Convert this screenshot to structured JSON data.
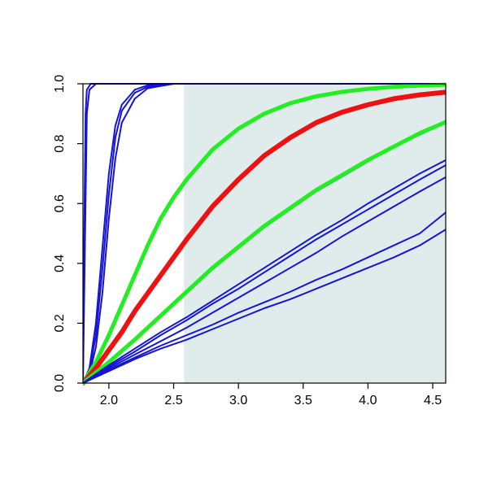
{
  "chart_data": {
    "type": "line",
    "title": "",
    "xlabel": "",
    "ylabel": "",
    "xlim": [
      1.8,
      4.6
    ],
    "ylim": [
      0.0,
      1.0
    ],
    "x_ticks": [
      2.0,
      2.5,
      3.0,
      3.5,
      4.0,
      4.5
    ],
    "x_tick_labels": [
      "2.0",
      "2.5",
      "3.0",
      "3.5",
      "4.0",
      "4.5"
    ],
    "y_ticks": [
      0.0,
      0.2,
      0.4,
      0.6,
      0.8,
      1.0
    ],
    "y_tick_labels": [
      "0.0",
      "0.2",
      "0.4",
      "0.6",
      "0.8",
      "1.0"
    ],
    "grid": false,
    "legend": "none",
    "shaded_region": {
      "x_start": 2.58,
      "x_end": 4.6,
      "color": "#e0ecec"
    },
    "colors": {
      "blue": "#1414d2",
      "green": "#22ee22",
      "red": "#ee1111"
    },
    "series": [
      {
        "color": "blue",
        "width": 2,
        "points": [
          [
            1.8,
            0
          ],
          [
            1.81,
            0.5
          ],
          [
            1.82,
            0.9
          ],
          [
            1.83,
            0.98
          ],
          [
            1.86,
            1.0
          ],
          [
            4.6,
            1.0
          ]
        ]
      },
      {
        "color": "blue",
        "width": 2,
        "points": [
          [
            1.8,
            0
          ],
          [
            1.82,
            0.6
          ],
          [
            1.83,
            0.9
          ],
          [
            1.85,
            0.98
          ],
          [
            1.9,
            1.0
          ],
          [
            4.6,
            1.0
          ]
        ]
      },
      {
        "color": "blue",
        "width": 2,
        "points": [
          [
            1.8,
            0
          ],
          [
            1.85,
            0.05
          ],
          [
            1.9,
            0.2
          ],
          [
            1.95,
            0.45
          ],
          [
            2.0,
            0.7
          ],
          [
            2.05,
            0.86
          ],
          [
            2.1,
            0.93
          ],
          [
            2.2,
            0.98
          ],
          [
            2.3,
            0.995
          ],
          [
            2.5,
            1.0
          ],
          [
            4.6,
            1.0
          ]
        ]
      },
      {
        "color": "blue",
        "width": 2,
        "points": [
          [
            1.8,
            0
          ],
          [
            1.85,
            0.04
          ],
          [
            1.9,
            0.16
          ],
          [
            1.95,
            0.38
          ],
          [
            2.0,
            0.63
          ],
          [
            2.05,
            0.82
          ],
          [
            2.1,
            0.91
          ],
          [
            2.2,
            0.97
          ],
          [
            2.3,
            0.99
          ],
          [
            2.5,
            1.0
          ],
          [
            4.6,
            1.0
          ]
        ]
      },
      {
        "color": "blue",
        "width": 2,
        "points": [
          [
            1.8,
            0
          ],
          [
            1.85,
            0.03
          ],
          [
            1.9,
            0.12
          ],
          [
            1.95,
            0.3
          ],
          [
            2.0,
            0.55
          ],
          [
            2.05,
            0.75
          ],
          [
            2.1,
            0.87
          ],
          [
            2.2,
            0.95
          ],
          [
            2.3,
            0.985
          ],
          [
            2.5,
            1.0
          ],
          [
            4.6,
            1.0
          ]
        ]
      },
      {
        "color": "green",
        "width": 5,
        "points": [
          [
            1.8,
            0
          ],
          [
            1.9,
            0.07
          ],
          [
            2.0,
            0.16
          ],
          [
            2.1,
            0.26
          ],
          [
            2.2,
            0.36
          ],
          [
            2.3,
            0.46
          ],
          [
            2.4,
            0.55
          ],
          [
            2.5,
            0.62
          ],
          [
            2.6,
            0.68
          ],
          [
            2.8,
            0.78
          ],
          [
            3.0,
            0.85
          ],
          [
            3.2,
            0.9
          ],
          [
            3.4,
            0.935
          ],
          [
            3.6,
            0.958
          ],
          [
            3.8,
            0.973
          ],
          [
            4.0,
            0.983
          ],
          [
            4.2,
            0.99
          ],
          [
            4.4,
            0.994
          ],
          [
            4.6,
            0.997
          ]
        ]
      },
      {
        "color": "red",
        "width": 6,
        "points": [
          [
            1.8,
            0
          ],
          [
            1.9,
            0.05
          ],
          [
            2.0,
            0.11
          ],
          [
            2.1,
            0.17
          ],
          [
            2.2,
            0.24
          ],
          [
            2.3,
            0.3
          ],
          [
            2.4,
            0.36
          ],
          [
            2.5,
            0.42
          ],
          [
            2.6,
            0.48
          ],
          [
            2.8,
            0.59
          ],
          [
            3.0,
            0.68
          ],
          [
            3.2,
            0.76
          ],
          [
            3.4,
            0.82
          ],
          [
            3.6,
            0.87
          ],
          [
            3.8,
            0.905
          ],
          [
            4.0,
            0.93
          ],
          [
            4.2,
            0.95
          ],
          [
            4.4,
            0.963
          ],
          [
            4.6,
            0.972
          ]
        ]
      },
      {
        "color": "blue",
        "width": 2,
        "points": [
          [
            1.8,
            0
          ],
          [
            2.0,
            0.07
          ],
          [
            2.2,
            0.145
          ],
          [
            2.4,
            0.22
          ],
          [
            2.6,
            0.3
          ],
          [
            2.8,
            0.38
          ],
          [
            3.0,
            0.45
          ],
          [
            3.2,
            0.52
          ],
          [
            3.4,
            0.58
          ],
          [
            3.6,
            0.64
          ],
          [
            3.8,
            0.69
          ],
          [
            4.0,
            0.74
          ],
          [
            4.2,
            0.79
          ],
          [
            4.4,
            0.83
          ],
          [
            4.6,
            0.87
          ]
        ]
      },
      {
        "color": "green",
        "width": 5,
        "points": [
          [
            1.8,
            0
          ],
          [
            2.0,
            0.07
          ],
          [
            2.2,
            0.145
          ],
          [
            2.4,
            0.225
          ],
          [
            2.6,
            0.305
          ],
          [
            2.8,
            0.385
          ],
          [
            3.0,
            0.455
          ],
          [
            3.2,
            0.525
          ],
          [
            3.4,
            0.585
          ],
          [
            3.6,
            0.645
          ],
          [
            3.8,
            0.695
          ],
          [
            4.0,
            0.745
          ],
          [
            4.2,
            0.79
          ],
          [
            4.4,
            0.835
          ],
          [
            4.6,
            0.872
          ]
        ]
      },
      {
        "color": "blue",
        "width": 2,
        "points": [
          [
            1.8,
            0
          ],
          [
            2.0,
            0.06
          ],
          [
            2.2,
            0.115
          ],
          [
            2.4,
            0.17
          ],
          [
            2.6,
            0.22
          ],
          [
            2.8,
            0.275
          ],
          [
            3.0,
            0.33
          ],
          [
            3.2,
            0.385
          ],
          [
            3.4,
            0.44
          ],
          [
            3.6,
            0.495
          ],
          [
            3.8,
            0.545
          ],
          [
            4.0,
            0.6
          ],
          [
            4.2,
            0.65
          ],
          [
            4.4,
            0.7
          ],
          [
            4.6,
            0.745
          ]
        ]
      },
      {
        "color": "blue",
        "width": 2,
        "points": [
          [
            1.8,
            0
          ],
          [
            2.0,
            0.055
          ],
          [
            2.2,
            0.105
          ],
          [
            2.4,
            0.16
          ],
          [
            2.6,
            0.21
          ],
          [
            2.8,
            0.265
          ],
          [
            3.0,
            0.315
          ],
          [
            3.2,
            0.37
          ],
          [
            3.4,
            0.425
          ],
          [
            3.6,
            0.48
          ],
          [
            3.8,
            0.53
          ],
          [
            4.0,
            0.58
          ],
          [
            4.2,
            0.63
          ],
          [
            4.4,
            0.68
          ],
          [
            4.6,
            0.728
          ]
        ]
      },
      {
        "color": "blue",
        "width": 2,
        "points": [
          [
            1.8,
            0
          ],
          [
            2.0,
            0.05
          ],
          [
            2.2,
            0.095
          ],
          [
            2.4,
            0.14
          ],
          [
            2.6,
            0.185
          ],
          [
            2.8,
            0.235
          ],
          [
            3.0,
            0.285
          ],
          [
            3.2,
            0.335
          ],
          [
            3.4,
            0.385
          ],
          [
            3.6,
            0.435
          ],
          [
            3.8,
            0.49
          ],
          [
            4.0,
            0.54
          ],
          [
            4.2,
            0.59
          ],
          [
            4.4,
            0.64
          ],
          [
            4.6,
            0.688
          ]
        ]
      },
      {
        "color": "blue",
        "width": 2,
        "points": [
          [
            1.8,
            0
          ],
          [
            2.0,
            0.045
          ],
          [
            2.2,
            0.085
          ],
          [
            2.4,
            0.125
          ],
          [
            2.6,
            0.16
          ],
          [
            2.8,
            0.195
          ],
          [
            3.0,
            0.235
          ],
          [
            3.2,
            0.27
          ],
          [
            3.4,
            0.305
          ],
          [
            3.6,
            0.345
          ],
          [
            3.8,
            0.38
          ],
          [
            4.0,
            0.42
          ],
          [
            4.2,
            0.46
          ],
          [
            4.4,
            0.5
          ],
          [
            4.6,
            0.57
          ]
        ]
      },
      {
        "color": "blue",
        "width": 2,
        "points": [
          [
            1.8,
            0
          ],
          [
            2.0,
            0.04
          ],
          [
            2.2,
            0.08
          ],
          [
            2.4,
            0.115
          ],
          [
            2.6,
            0.145
          ],
          [
            2.8,
            0.18
          ],
          [
            3.0,
            0.215
          ],
          [
            3.2,
            0.25
          ],
          [
            3.4,
            0.28
          ],
          [
            3.6,
            0.315
          ],
          [
            3.8,
            0.35
          ],
          [
            4.0,
            0.385
          ],
          [
            4.2,
            0.42
          ],
          [
            4.4,
            0.46
          ],
          [
            4.6,
            0.513
          ]
        ]
      }
    ]
  }
}
